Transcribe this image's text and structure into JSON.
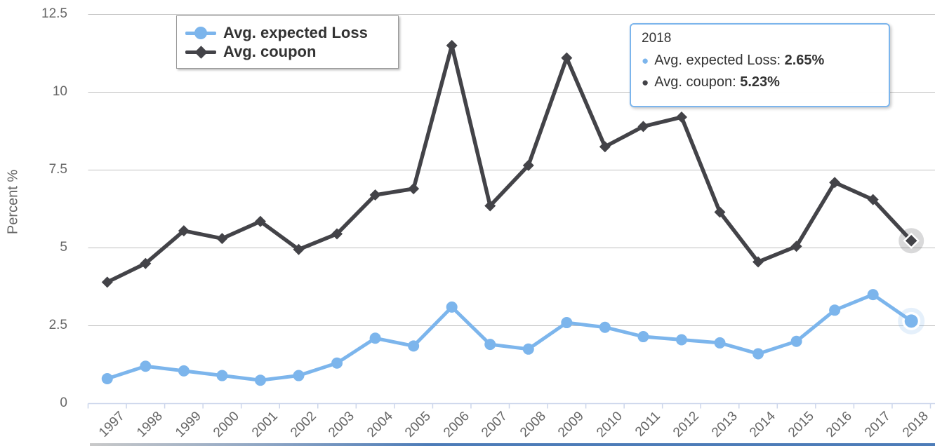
{
  "chart_data": {
    "type": "line",
    "title": "",
    "xlabel": "",
    "ylabel": "Percent %",
    "ylim": [
      0,
      12.5
    ],
    "yticks": [
      0,
      2.5,
      5,
      7.5,
      10,
      12.5
    ],
    "ytick_labels": [
      "0",
      "2.5",
      "5",
      "7.5",
      "10",
      "12.5"
    ],
    "grid": true,
    "legend_position": "top-left",
    "hovered_category": "2018",
    "categories": [
      "1997",
      "1998",
      "1999",
      "2000",
      "2001",
      "2002",
      "2003",
      "2004",
      "2005",
      "2006",
      "2007",
      "2008",
      "2009",
      "2010",
      "2011",
      "2012",
      "2013",
      "2014",
      "2015",
      "2016",
      "2017",
      "2018"
    ],
    "series": [
      {
        "name": "Avg. expected Loss",
        "color": "#7cb5ec",
        "marker": "circle",
        "values": [
          0.8,
          1.2,
          1.05,
          0.9,
          0.75,
          0.9,
          1.3,
          2.1,
          1.85,
          3.1,
          1.9,
          1.75,
          2.6,
          2.45,
          2.15,
          2.05,
          1.95,
          1.6,
          2.0,
          3.0,
          3.5,
          2.65
        ]
      },
      {
        "name": "Avg. coupon",
        "color": "#434348",
        "marker": "diamond",
        "values": [
          3.9,
          4.5,
          5.55,
          5.3,
          5.85,
          4.95,
          5.45,
          6.7,
          6.9,
          11.5,
          6.35,
          7.65,
          11.1,
          8.25,
          8.9,
          9.2,
          6.15,
          4.55,
          5.05,
          7.1,
          6.55,
          5.23
        ]
      }
    ],
    "colors": {
      "axis_line": "#ccd6eb",
      "grid_line": "#c0c0c0",
      "axis_label": "#666666",
      "legend_text": "#333333",
      "tooltip_border": "#7cb5ec"
    }
  },
  "legend": {
    "items": [
      {
        "label": "Avg. expected Loss",
        "color": "#7cb5ec",
        "marker": "circle"
      },
      {
        "label": "Avg. coupon",
        "color": "#434348",
        "marker": "diamond"
      }
    ]
  },
  "tooltip": {
    "header": "2018",
    "items": [
      {
        "bullet": "●",
        "label": "Avg. expected Loss",
        "separator": ": ",
        "value": "2.65%",
        "color": "#7cb5ec"
      },
      {
        "bullet": "●",
        "label": "Avg. coupon",
        "separator": ": ",
        "value": "5.23%",
        "color": "#434348"
      }
    ]
  }
}
